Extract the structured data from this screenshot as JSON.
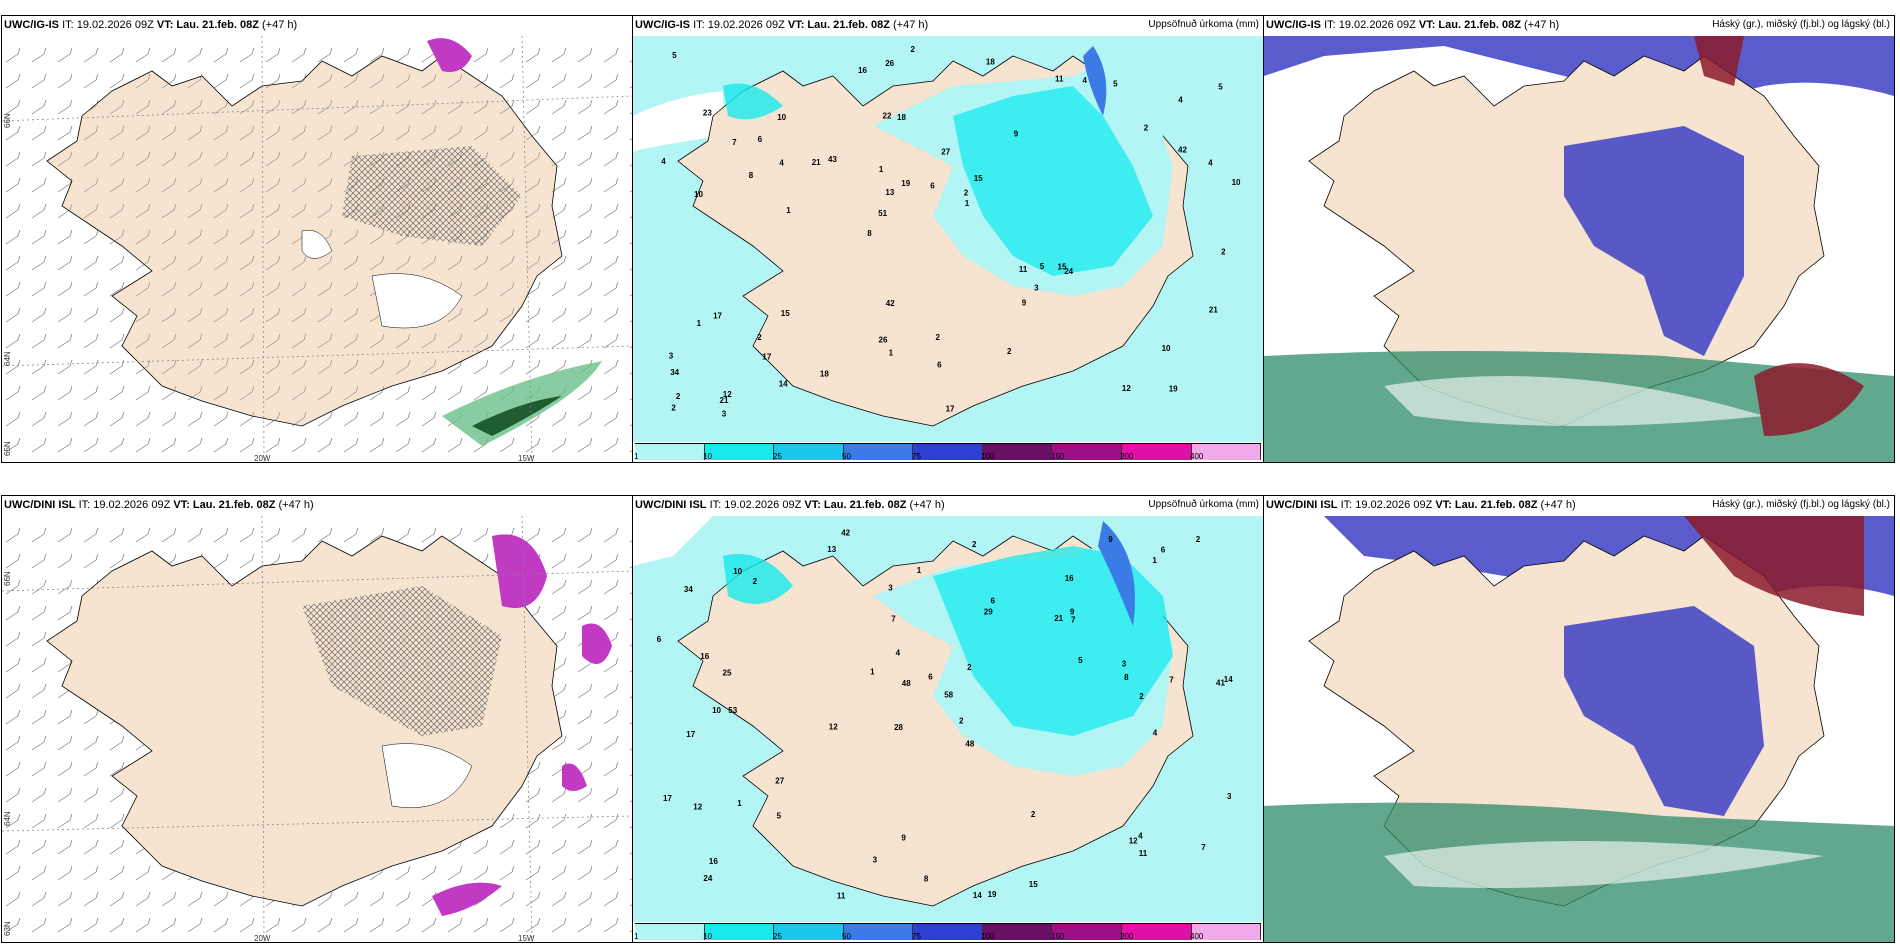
{
  "rows": [
    {
      "model": "UWC/IG-IS",
      "it": "IT: 19.02.2026 09Z",
      "vt_label": "VT:",
      "vt": "Lau. 21.feb. 08Z",
      "lead": "(+47 h)",
      "precip_values": [
        "19",
        "10",
        "4",
        "8",
        "9",
        "12",
        "22",
        "27",
        "17",
        "43",
        "34",
        "17",
        "18",
        "15",
        "24",
        "23",
        "26",
        "10",
        "11",
        "42",
        "51",
        "26",
        "13",
        "10",
        "11",
        "15",
        "12",
        "10",
        "15",
        "17",
        "21",
        "8",
        "9",
        "14",
        "4",
        "2",
        "2",
        "1",
        "1",
        "1",
        "2",
        "5",
        "3",
        "2",
        "2",
        "3",
        "2",
        "2",
        "5",
        "2",
        "1",
        "4",
        "6",
        "4",
        "21",
        "18",
        "16",
        "19",
        "21",
        "42",
        "18",
        "5",
        "4",
        "3",
        "5",
        "7",
        "2",
        "1",
        "6",
        "6"
      ]
    },
    {
      "model": "UWC/DINI ISL",
      "it": "IT: 19.02.2026 09Z",
      "vt_label": "VT:",
      "vt": "Lau. 21.feb. 08Z",
      "lead": "(+47 h)",
      "precip_values": [
        "42",
        "16",
        "41",
        "28",
        "48",
        "53",
        "34",
        "21",
        "17",
        "29",
        "58",
        "24",
        "13",
        "12",
        "14",
        "19",
        "9",
        "9",
        "5",
        "27",
        "25",
        "10",
        "14",
        "7",
        "17",
        "16",
        "48",
        "8",
        "4",
        "12",
        "12",
        "6",
        "1",
        "1",
        "2",
        "3",
        "3",
        "3",
        "2",
        "1",
        "16",
        "11",
        "15",
        "10",
        "8",
        "7",
        "11",
        "9",
        "6",
        "2",
        "3",
        "2",
        "2",
        "1",
        "2",
        "5",
        "4",
        "6",
        "6",
        "7",
        "7",
        "4",
        "2"
      ]
    }
  ],
  "precip_title": "Uppsöfnuð úrkoma (mm)",
  "cloud_title": "Háský (gr.), miðský (fj.bl.) og lágský (bl.)",
  "colorbar": {
    "labels": [
      "1",
      "10",
      "25",
      "50",
      "75",
      "100",
      "150",
      "200",
      "400"
    ],
    "colors": [
      "#b3f5f5",
      "#16e9ec",
      "#19c8ea",
      "#3a7be6",
      "#2d3fd4",
      "#6a0f63",
      "#9c0f86",
      "#e00fa5",
      "#f2a9ea"
    ]
  },
  "axes": {
    "lon_labels": [
      "20W",
      "15W"
    ],
    "lat_labels": [
      "66N",
      "64N",
      "65N"
    ],
    "lat_label_left": [
      "66N",
      "64N",
      "63N"
    ]
  },
  "colors": {
    "land": "#f6e3d0",
    "sea_precip": "#b3f5f5",
    "cloud_high": "#3d3fc5",
    "cloud_mid": "#8b1a2a",
    "cloud_low": "#2e8b6a"
  }
}
